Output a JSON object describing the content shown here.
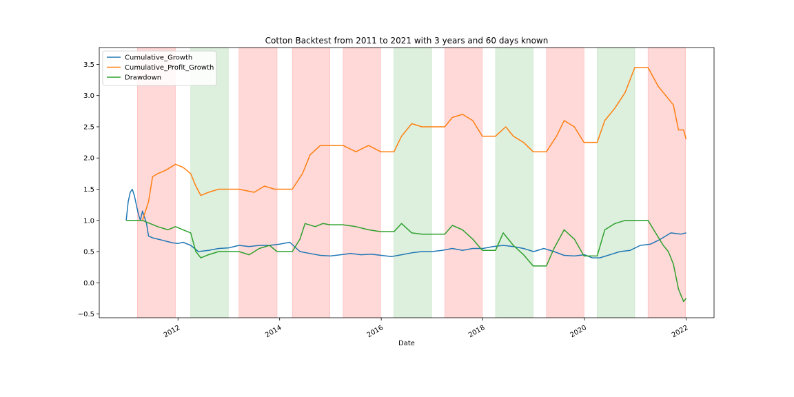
{
  "chart_data": {
    "type": "line",
    "title": "Cotton Backtest from 2011 to 2021 with 3 years and 60 days known",
    "xlabel": "Date",
    "ylabel": "",
    "xlim": [
      2010.45,
      2022.55
    ],
    "ylim": [
      -0.56,
      3.77
    ],
    "x_ticks": [
      {
        "label": "2012",
        "value": 2012
      },
      {
        "label": "2014",
        "value": 2014
      },
      {
        "label": "2016",
        "value": 2016
      },
      {
        "label": "2018",
        "value": 2018
      },
      {
        "label": "2020",
        "value": 2020
      },
      {
        "label": "2022",
        "value": 2022
      }
    ],
    "y_ticks": [
      {
        "label": "−0.5",
        "value": -0.5
      },
      {
        "label": "0.0",
        "value": 0.0
      },
      {
        "label": "0.5",
        "value": 0.5
      },
      {
        "label": "1.0",
        "value": 1.0
      },
      {
        "label": "1.5",
        "value": 1.5
      },
      {
        "label": "2.0",
        "value": 2.0
      },
      {
        "label": "2.5",
        "value": 2.5
      },
      {
        "label": "3.0",
        "value": 3.0
      },
      {
        "label": "3.5",
        "value": 3.5
      }
    ],
    "grid": false,
    "legend_position": "top-left",
    "shaded_periods": [
      {
        "start": 2011.2,
        "end": 2011.95,
        "color": "#ff9999"
      },
      {
        "start": 2012.25,
        "end": 2012.99,
        "color": "#a6d6a6"
      },
      {
        "start": 2013.2,
        "end": 2013.95,
        "color": "#ff9999"
      },
      {
        "start": 2014.25,
        "end": 2014.99,
        "color": "#ff9999"
      },
      {
        "start": 2015.25,
        "end": 2015.99,
        "color": "#ff9999"
      },
      {
        "start": 2016.25,
        "end": 2016.99,
        "color": "#a6d6a6"
      },
      {
        "start": 2017.25,
        "end": 2017.99,
        "color": "#ff9999"
      },
      {
        "start": 2018.25,
        "end": 2018.99,
        "color": "#a6d6a6"
      },
      {
        "start": 2019.25,
        "end": 2019.99,
        "color": "#ff9999"
      },
      {
        "start": 2020.25,
        "end": 2020.99,
        "color": "#a6d6a6"
      },
      {
        "start": 2021.25,
        "end": 2021.99,
        "color": "#ff9999"
      }
    ],
    "series": [
      {
        "name": "Cumulative_Growth",
        "color": "#1f77b4",
        "x": [
          2010.98,
          2011.02,
          2011.06,
          2011.1,
          2011.14,
          2011.18,
          2011.22,
          2011.26,
          2011.3,
          2011.34,
          2011.38,
          2011.42,
          2011.5,
          2011.6,
          2011.7,
          2011.8,
          2011.9,
          2012.0,
          2012.1,
          2012.25,
          2012.4,
          2012.6,
          2012.8,
          2013.0,
          2013.2,
          2013.4,
          2013.6,
          2013.8,
          2014.0,
          2014.2,
          2014.4,
          2014.6,
          2014.8,
          2015.0,
          2015.2,
          2015.4,
          2015.6,
          2015.8,
          2016.0,
          2016.2,
          2016.4,
          2016.6,
          2016.8,
          2017.0,
          2017.2,
          2017.4,
          2017.6,
          2017.8,
          2018.0,
          2018.2,
          2018.4,
          2018.6,
          2018.8,
          2019.0,
          2019.2,
          2019.4,
          2019.6,
          2019.8,
          2020.0,
          2020.15,
          2020.3,
          2020.5,
          2020.7,
          2020.9,
          2021.1,
          2021.3,
          2021.5,
          2021.7,
          2021.9,
          2022.0
        ],
        "y": [
          1.0,
          1.3,
          1.45,
          1.5,
          1.4,
          1.25,
          1.1,
          1.0,
          1.15,
          1.05,
          0.95,
          0.75,
          0.72,
          0.7,
          0.68,
          0.66,
          0.64,
          0.63,
          0.65,
          0.6,
          0.5,
          0.52,
          0.55,
          0.56,
          0.6,
          0.58,
          0.6,
          0.6,
          0.62,
          0.65,
          0.5,
          0.47,
          0.44,
          0.43,
          0.45,
          0.47,
          0.45,
          0.46,
          0.44,
          0.42,
          0.45,
          0.48,
          0.5,
          0.5,
          0.52,
          0.55,
          0.52,
          0.55,
          0.55,
          0.58,
          0.6,
          0.58,
          0.55,
          0.5,
          0.55,
          0.5,
          0.44,
          0.43,
          0.45,
          0.4,
          0.4,
          0.45,
          0.5,
          0.52,
          0.6,
          0.62,
          0.7,
          0.8,
          0.78,
          0.8
        ]
      },
      {
        "name": "Cumulative_Profit_Growth",
        "color": "#ff7f0e",
        "x": [
          2010.98,
          2011.3,
          2011.42,
          2011.5,
          2011.6,
          2011.75,
          2011.85,
          2011.95,
          2012.1,
          2012.25,
          2012.35,
          2012.45,
          2012.6,
          2012.8,
          2012.99,
          2013.2,
          2013.5,
          2013.7,
          2013.9,
          2013.95,
          2014.25,
          2014.45,
          2014.6,
          2014.8,
          2014.99,
          2015.25,
          2015.5,
          2015.75,
          2015.99,
          2016.25,
          2016.4,
          2016.6,
          2016.8,
          2016.99,
          2017.25,
          2017.4,
          2017.6,
          2017.8,
          2017.99,
          2018.25,
          2018.45,
          2018.6,
          2018.8,
          2018.99,
          2019.25,
          2019.45,
          2019.6,
          2019.8,
          2019.99,
          2020.25,
          2020.4,
          2020.6,
          2020.8,
          2020.99,
          2021.25,
          2021.45,
          2021.6,
          2021.75,
          2021.85,
          2021.95,
          2022.0
        ],
        "y": [
          1.0,
          1.0,
          1.3,
          1.7,
          1.75,
          1.8,
          1.85,
          1.9,
          1.85,
          1.75,
          1.55,
          1.4,
          1.45,
          1.5,
          1.5,
          1.5,
          1.45,
          1.55,
          1.5,
          1.5,
          1.5,
          1.75,
          2.05,
          2.2,
          2.2,
          2.2,
          2.1,
          2.2,
          2.1,
          2.1,
          2.35,
          2.55,
          2.5,
          2.5,
          2.5,
          2.65,
          2.7,
          2.6,
          2.35,
          2.35,
          2.5,
          2.35,
          2.25,
          2.1,
          2.1,
          2.35,
          2.6,
          2.5,
          2.25,
          2.25,
          2.6,
          2.8,
          3.05,
          3.45,
          3.45,
          3.15,
          3.0,
          2.85,
          2.45,
          2.45,
          2.3
        ]
      },
      {
        "name": "Drawdown",
        "color": "#2ca02c",
        "x": [
          2010.98,
          2011.3,
          2011.45,
          2011.6,
          2011.8,
          2011.95,
          2012.1,
          2012.25,
          2012.35,
          2012.45,
          2012.6,
          2012.8,
          2012.99,
          2013.2,
          2013.4,
          2013.6,
          2013.8,
          2013.95,
          2014.25,
          2014.4,
          2014.5,
          2014.7,
          2014.85,
          2014.99,
          2015.25,
          2015.5,
          2015.75,
          2015.99,
          2016.25,
          2016.4,
          2016.6,
          2016.8,
          2016.99,
          2017.25,
          2017.4,
          2017.6,
          2017.8,
          2017.99,
          2018.25,
          2018.4,
          2018.6,
          2018.8,
          2018.99,
          2019.25,
          2019.4,
          2019.6,
          2019.8,
          2019.99,
          2020.25,
          2020.4,
          2020.6,
          2020.8,
          2020.99,
          2021.25,
          2021.4,
          2021.55,
          2021.65,
          2021.75,
          2021.85,
          2021.95,
          2022.0
        ],
        "y": [
          1.0,
          1.0,
          0.95,
          0.9,
          0.85,
          0.9,
          0.85,
          0.8,
          0.5,
          0.4,
          0.45,
          0.5,
          0.5,
          0.5,
          0.45,
          0.55,
          0.6,
          0.5,
          0.5,
          0.7,
          0.95,
          0.9,
          0.95,
          0.93,
          0.93,
          0.9,
          0.85,
          0.82,
          0.82,
          0.95,
          0.8,
          0.78,
          0.78,
          0.78,
          0.92,
          0.85,
          0.7,
          0.52,
          0.52,
          0.8,
          0.6,
          0.45,
          0.27,
          0.27,
          0.55,
          0.85,
          0.7,
          0.43,
          0.43,
          0.85,
          0.95,
          1.0,
          1.0,
          1.0,
          0.8,
          0.6,
          0.5,
          0.3,
          -0.1,
          -0.3,
          -0.25
        ]
      }
    ]
  }
}
